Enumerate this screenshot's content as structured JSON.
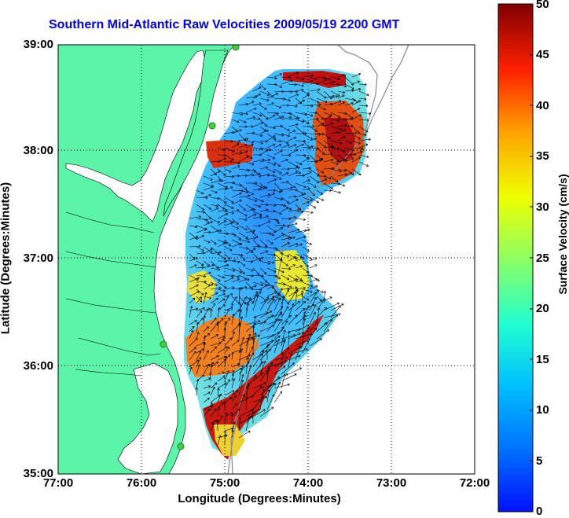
{
  "title": "Southern Mid-Atlantic Raw Velocities 2009/05/19 2200 GMT",
  "axes": {
    "xlabel": "Longitude (Degrees:Minutes)",
    "ylabel": "Latitude (Degrees:Minutes)",
    "xticks": [
      "77:00",
      "76:00",
      "75:00",
      "74:00",
      "73:00",
      "72:00"
    ],
    "yticks": [
      "39:00",
      "38:00",
      "37:00",
      "36:00",
      "35:00"
    ]
  },
  "colorbar": {
    "label": "Surface Velocity (cm/s)",
    "ticks": [
      "50",
      "45",
      "40",
      "35",
      "30",
      "25",
      "20",
      "15",
      "10",
      "5",
      "0"
    ],
    "range": [
      0,
      50
    ]
  },
  "colors": {
    "land": "#5af5a8",
    "title": "#0000ee",
    "arrows": "#000000"
  },
  "map": {
    "lon_range": [
      -77,
      -72
    ],
    "lat_range": [
      35,
      39
    ],
    "stations": 6
  }
}
